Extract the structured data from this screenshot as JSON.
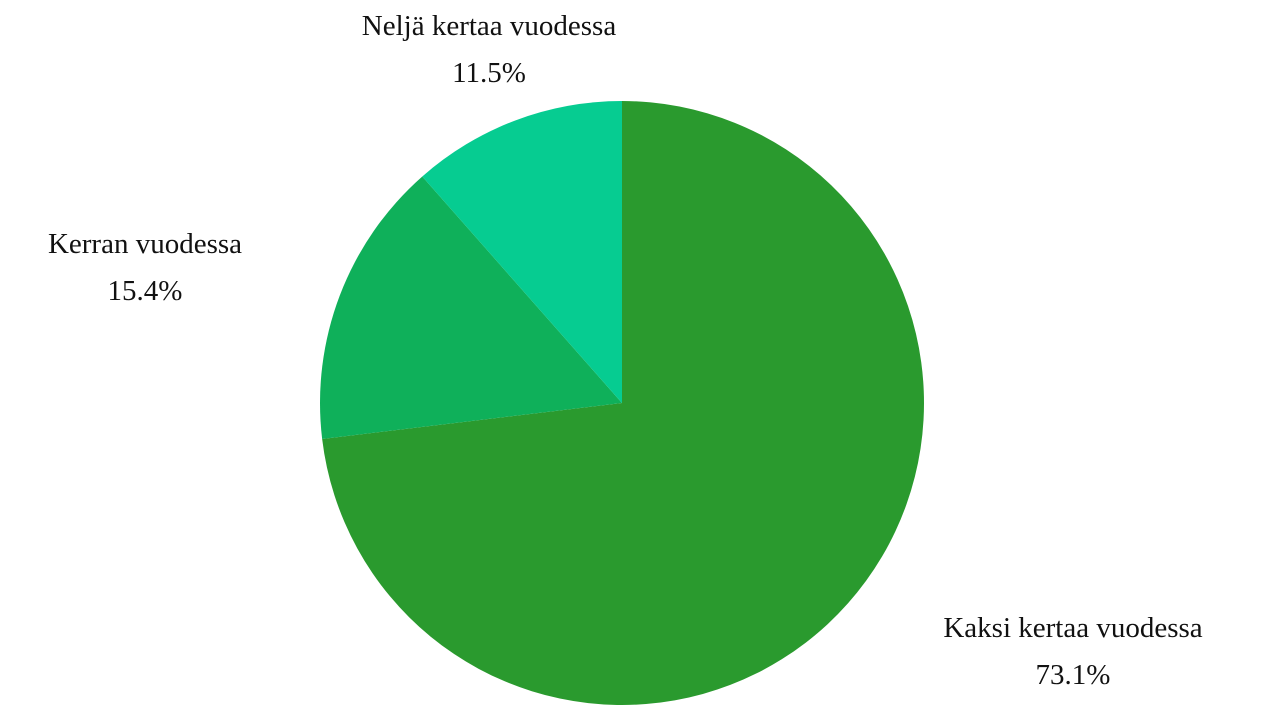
{
  "chart_data": {
    "type": "pie",
    "title": "",
    "slices": [
      {
        "label": "Kaksi kertaa vuodessa",
        "value": 73.1,
        "value_label": "73.1%",
        "color": "#2a9a2e"
      },
      {
        "label": "Kerran vuodessa",
        "value": 15.4,
        "value_label": "15.4%",
        "color": "#0fb05a"
      },
      {
        "label": "Neljä kertaa vuodessa",
        "value": 11.5,
        "value_label": "11.5%",
        "color": "#06cc91"
      }
    ],
    "start_angle": "12 o'clock",
    "direction": "clockwise",
    "legend": "none",
    "labels": "outside"
  }
}
